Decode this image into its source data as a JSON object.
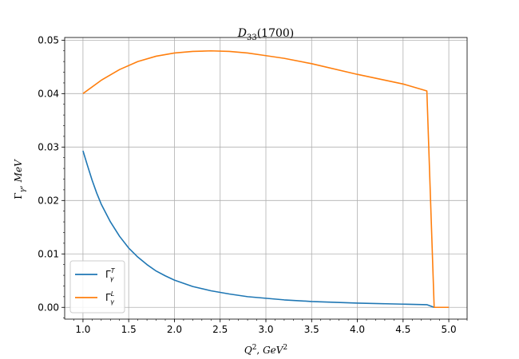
{
  "chart_data": {
    "type": "line",
    "title": {
      "main": "D",
      "sub": "33",
      "rest": "(1700)"
    },
    "xlabel": {
      "base": "Q",
      "sup": "2",
      "sep": ", ",
      "unit": "GeV",
      "unit_sup": "2"
    },
    "ylabel": {
      "base": "Γ",
      "sub": "γ",
      "sep": ", ",
      "unit": "MeV"
    },
    "xlim": [
      0.8,
      5.2
    ],
    "ylim": [
      -0.0022,
      0.0505
    ],
    "xticks": [
      1.0,
      1.5,
      2.0,
      2.5,
      3.0,
      3.5,
      4.0,
      4.5,
      5.0
    ],
    "xtick_labels": [
      "1.0",
      "1.5",
      "2.0",
      "2.5",
      "3.0",
      "3.5",
      "4.0",
      "4.5",
      "5.0"
    ],
    "yticks": [
      0.0,
      0.01,
      0.02,
      0.03,
      0.04,
      0.05
    ],
    "ytick_labels": [
      "0.00",
      "0.01",
      "0.02",
      "0.03",
      "0.04",
      "0.05"
    ],
    "grid": true,
    "legend_position": "lower-left",
    "series": [
      {
        "name": {
          "base": "Γ",
          "sub": "γ",
          "sup": "T"
        },
        "color": "#1f77b4",
        "x": [
          1.0,
          1.05,
          1.1,
          1.15,
          1.2,
          1.3,
          1.4,
          1.5,
          1.6,
          1.7,
          1.8,
          1.9,
          2.0,
          2.2,
          2.4,
          2.6,
          2.8,
          3.0,
          3.2,
          3.5,
          4.0,
          4.5,
          4.76,
          4.84,
          5.0
        ],
        "values": [
          0.0293,
          0.0265,
          0.0238,
          0.0214,
          0.0193,
          0.016,
          0.0133,
          0.0111,
          0.0094,
          0.008,
          0.0068,
          0.0059,
          0.0051,
          0.0039,
          0.0031,
          0.0025,
          0.002,
          0.0017,
          0.0014,
          0.0011,
          0.0008,
          0.0006,
          0.0005,
          0.0,
          0.0
        ]
      },
      {
        "name": {
          "base": "Γ",
          "sub": "γ",
          "sup": "L"
        },
        "color": "#ff7f0e",
        "x": [
          1.0,
          1.2,
          1.4,
          1.6,
          1.8,
          2.0,
          2.2,
          2.4,
          2.6,
          2.8,
          3.0,
          3.2,
          3.5,
          4.0,
          4.5,
          4.76,
          4.84,
          5.0
        ],
        "values": [
          0.04,
          0.0425,
          0.0445,
          0.046,
          0.047,
          0.0476,
          0.0479,
          0.048,
          0.0479,
          0.0476,
          0.0471,
          0.0466,
          0.0456,
          0.0436,
          0.0418,
          0.0405,
          0.0,
          0.0
        ]
      }
    ]
  }
}
